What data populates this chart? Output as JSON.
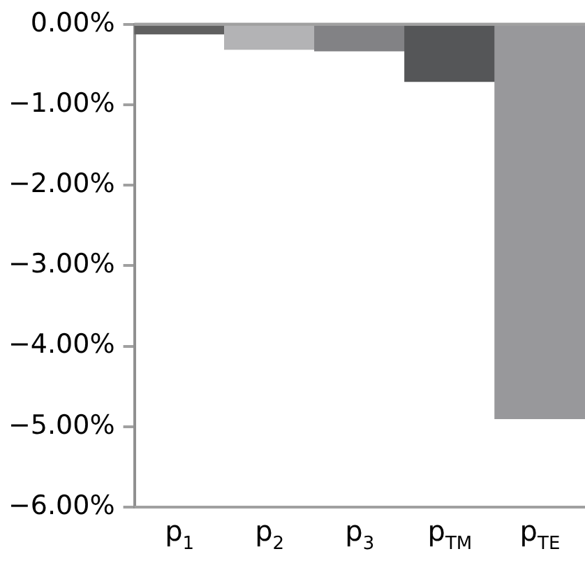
{
  "chart_data": {
    "type": "bar",
    "categories": [
      "p$_{1}$",
      "p$_{2}$",
      "p$_{3}$",
      "p$_{TM}$",
      "p$_{TE}$"
    ],
    "values": [
      -0.12,
      -0.31,
      -0.33,
      -0.71,
      -4.9
    ],
    "colors": [
      "#606060",
      "#b3b3b5",
      "#828285",
      "#555658",
      "#98989b"
    ],
    "ylim": [
      -6,
      0
    ],
    "yticks": [
      {
        "value": 0,
        "label": "0.00%"
      },
      {
        "value": -1,
        "label": "−1.00%"
      },
      {
        "value": -2,
        "label": "−2.00%"
      },
      {
        "value": -3,
        "label": "−3.00%"
      },
      {
        "value": -4,
        "label": "−4.00%"
      },
      {
        "value": -5,
        "label": "−5.00%"
      },
      {
        "value": -6,
        "label": "−6.00%"
      }
    ],
    "legend": false
  }
}
